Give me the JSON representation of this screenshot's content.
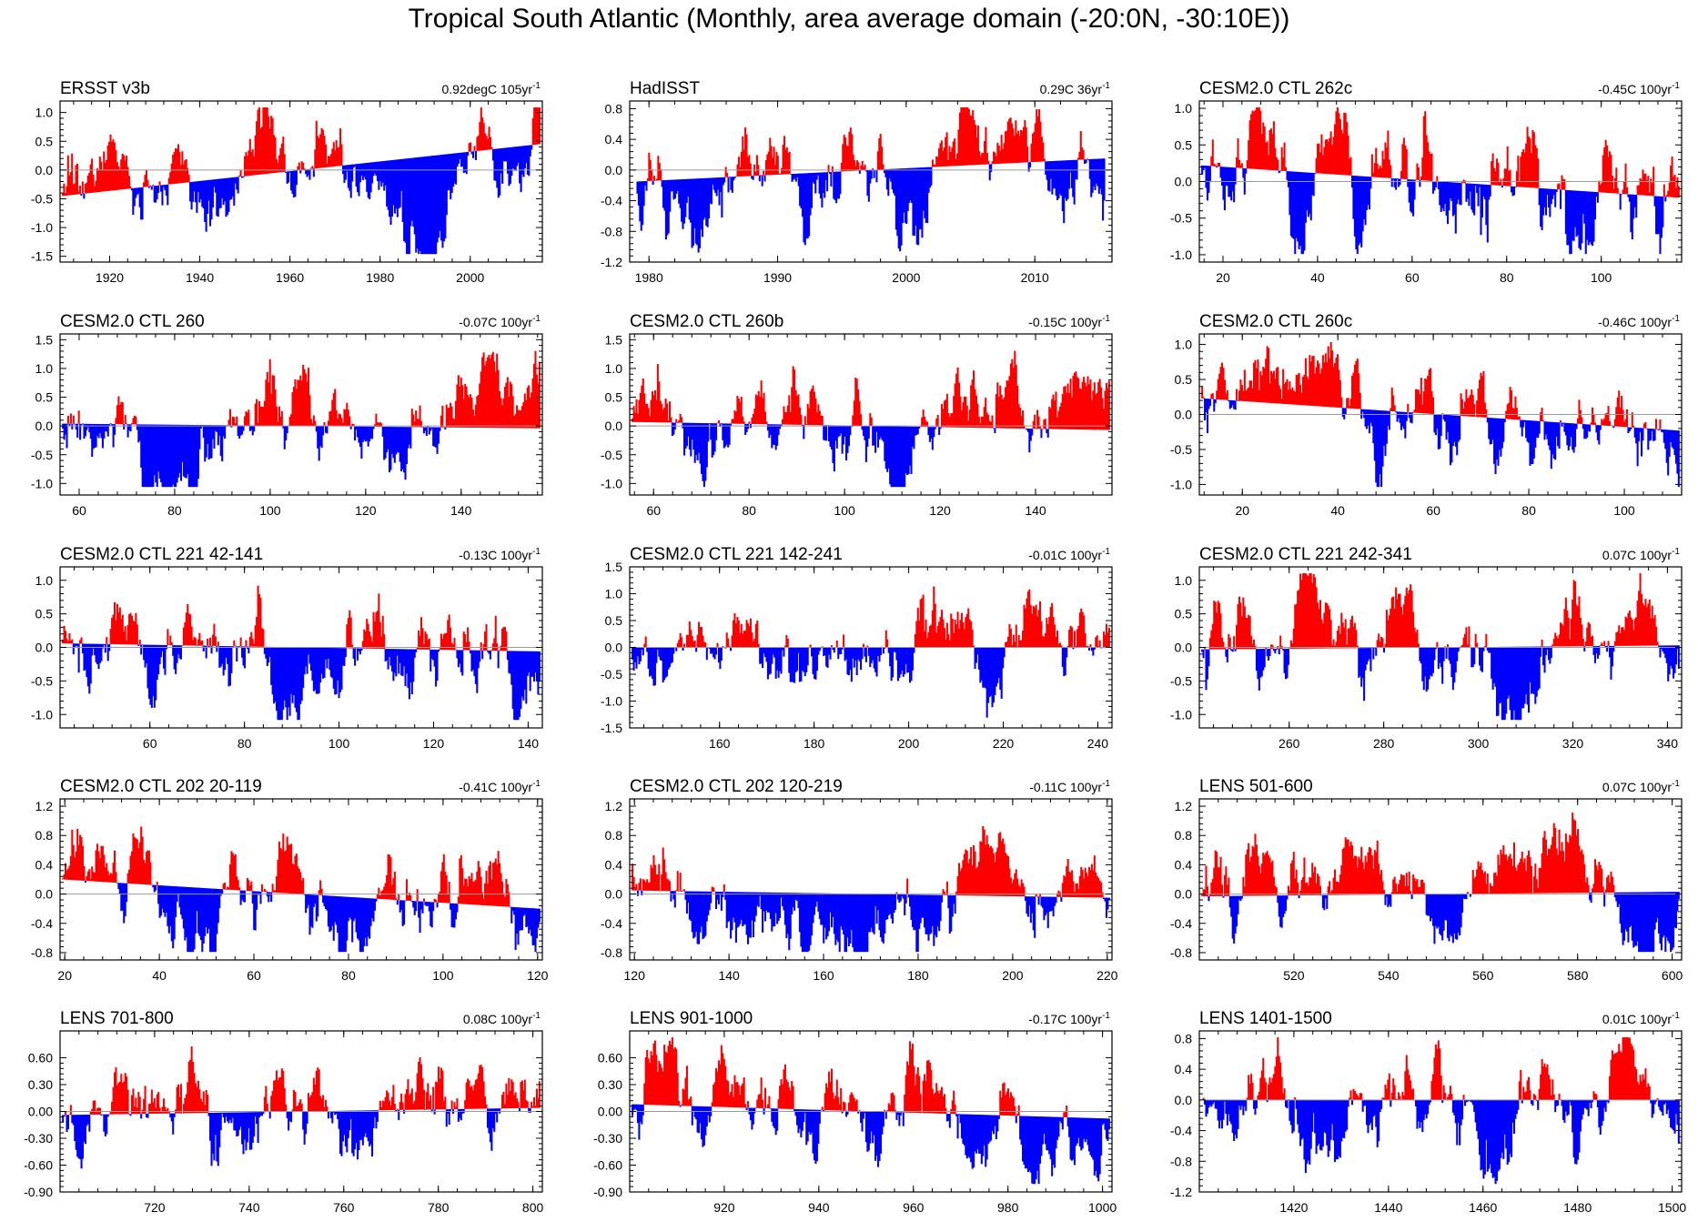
{
  "title": "Tropical South Atlantic (Monthly, area average domain (-20:0N, -30:10E))",
  "colors": {
    "positive": "#ff0000",
    "negative": "#0000ff",
    "axis": "#000000",
    "zero_line": "#9a9a9a"
  },
  "chart_data": [
    {
      "type": "bar",
      "title": "ERSST v3b",
      "trend": "0.92degC 105yr",
      "trend_unit_exp": "-1",
      "xlim": [
        1909,
        2016
      ],
      "ylim": [
        -1.6,
        1.2
      ],
      "yticks": [
        "1.0",
        "0.5",
        "0.0",
        "-0.5",
        "-1.0",
        "-1.5"
      ],
      "ytick_values": [
        1.0,
        0.5,
        0.0,
        -0.5,
        -1.0,
        -1.5
      ],
      "xticks": [
        "1920",
        "1940",
        "1960",
        "1980",
        "2000"
      ],
      "xtick_values": [
        1920,
        1940,
        1960,
        1980,
        2000
      ],
      "trend_line": [
        -0.45,
        0.45
      ],
      "amp": 0.55,
      "seed": 11
    },
    {
      "type": "bar",
      "title": "HadISST",
      "trend": "0.29C 36yr",
      "trend_unit_exp": "-1",
      "xlim": [
        1978.5,
        2016
      ],
      "ylim": [
        -1.2,
        0.9
      ],
      "yticks": [
        "0.8",
        "0.4",
        "0.0",
        "-0.4",
        "-0.8",
        "-1.2"
      ],
      "ytick_values": [
        0.8,
        0.4,
        0.0,
        -0.4,
        -0.8,
        -1.2
      ],
      "xticks": [
        "1980",
        "1990",
        "2000",
        "2010"
      ],
      "xtick_values": [
        1980,
        1990,
        2000,
        2010
      ],
      "trend_line": [
        -0.15,
        0.15
      ],
      "amp": 0.45,
      "seed": 23
    },
    {
      "type": "bar",
      "title": "CESM2.0 CTL 262c",
      "trend": "-0.45C 100yr",
      "trend_unit_exp": "-1",
      "xlim": [
        15,
        117
      ],
      "ylim": [
        -1.1,
        1.1
      ],
      "yticks": [
        "1.0",
        "0.5",
        "0.0",
        "-0.5",
        "-1.0"
      ],
      "ytick_values": [
        1.0,
        0.5,
        0.0,
        -0.5,
        -1.0
      ],
      "xticks": [
        "20",
        "40",
        "60",
        "80",
        "100"
      ],
      "xtick_values": [
        20,
        40,
        60,
        80,
        100
      ],
      "trend_line": [
        0.22,
        -0.22
      ],
      "amp": 0.55,
      "seed": 37
    },
    {
      "type": "bar",
      "title": "CESM2.0 CTL 260",
      "trend": "-0.07C 100yr",
      "trend_unit_exp": "-1",
      "xlim": [
        56,
        157
      ],
      "ylim": [
        -1.2,
        1.6
      ],
      "yticks": [
        "1.5",
        "1.0",
        "0.5",
        "0.0",
        "-0.5",
        "-1.0"
      ],
      "ytick_values": [
        1.5,
        1.0,
        0.5,
        0.0,
        -0.5,
        -1.0
      ],
      "xticks": [
        "60",
        "80",
        "100",
        "120",
        "140"
      ],
      "xtick_values": [
        60,
        80,
        100,
        120,
        140
      ],
      "trend_line": [
        0.04,
        -0.04
      ],
      "amp": 0.55,
      "seed": 41
    },
    {
      "type": "bar",
      "title": "CESM2.0 CTL 260b",
      "trend": "-0.15C 100yr",
      "trend_unit_exp": "-1",
      "xlim": [
        55,
        156
      ],
      "ylim": [
        -1.2,
        1.6
      ],
      "yticks": [
        "1.5",
        "1.0",
        "0.5",
        "0.0",
        "-0.5",
        "-1.0"
      ],
      "ytick_values": [
        1.5,
        1.0,
        0.5,
        0.0,
        -0.5,
        -1.0
      ],
      "xticks": [
        "60",
        "80",
        "100",
        "120",
        "140"
      ],
      "xtick_values": [
        60,
        80,
        100,
        120,
        140
      ],
      "trend_line": [
        0.07,
        -0.07
      ],
      "amp": 0.55,
      "seed": 53
    },
    {
      "type": "bar",
      "title": "CESM2.0 CTL 260c",
      "trend": "-0.46C 100yr",
      "trend_unit_exp": "-1",
      "xlim": [
        11,
        112
      ],
      "ylim": [
        -1.15,
        1.15
      ],
      "yticks": [
        "1.0",
        "0.5",
        "0.0",
        "-0.5",
        "-1.0"
      ],
      "ytick_values": [
        1.0,
        0.5,
        0.0,
        -0.5,
        -1.0
      ],
      "xticks": [
        "20",
        "40",
        "60",
        "80",
        "100"
      ],
      "xtick_values": [
        20,
        40,
        60,
        80,
        100
      ],
      "trend_line": [
        0.23,
        -0.23
      ],
      "amp": 0.5,
      "seed": 67
    },
    {
      "type": "bar",
      "title": "CESM2.0 CTL 221 42-141",
      "trend": "-0.13C 100yr",
      "trend_unit_exp": "-1",
      "xlim": [
        41,
        143
      ],
      "ylim": [
        -1.2,
        1.2
      ],
      "yticks": [
        "1.0",
        "0.5",
        "0.0",
        "-0.5",
        "-1.0"
      ],
      "ytick_values": [
        1.0,
        0.5,
        0.0,
        -0.5,
        -1.0
      ],
      "xticks": [
        "60",
        "80",
        "100",
        "120",
        "140"
      ],
      "xtick_values": [
        60,
        80,
        100,
        120,
        140
      ],
      "trend_line": [
        0.06,
        -0.06
      ],
      "amp": 0.5,
      "seed": 71
    },
    {
      "type": "bar",
      "title": "CESM2.0 CTL 221 142-241",
      "trend": "-0.01C 100yr",
      "trend_unit_exp": "-1",
      "xlim": [
        141,
        243
      ],
      "ylim": [
        -1.5,
        1.5
      ],
      "yticks": [
        "1.5",
        "1.0",
        "0.5",
        "0.0",
        "-0.5",
        "-1.0",
        "-1.5"
      ],
      "ytick_values": [
        1.5,
        1.0,
        0.5,
        0.0,
        -0.5,
        -1.0,
        -1.5
      ],
      "xticks": [
        "160",
        "180",
        "200",
        "220",
        "240"
      ],
      "xtick_values": [
        160,
        180,
        200,
        220,
        240
      ],
      "trend_line": [
        0.0,
        0.0
      ],
      "amp": 0.55,
      "seed": 83
    },
    {
      "type": "bar",
      "title": "CESM2.0 CTL 221 242-341",
      "trend": "0.07C 100yr",
      "trend_unit_exp": "-1",
      "xlim": [
        241,
        343
      ],
      "ylim": [
        -1.2,
        1.2
      ],
      "yticks": [
        "1.0",
        "0.5",
        "0.0",
        "-0.5",
        "-1.0"
      ],
      "ytick_values": [
        1.0,
        0.5,
        0.0,
        -0.5,
        -1.0
      ],
      "xticks": [
        "260",
        "280",
        "300",
        "320",
        "340"
      ],
      "xtick_values": [
        260,
        280,
        300,
        320,
        340
      ],
      "trend_line": [
        -0.03,
        0.03
      ],
      "amp": 0.5,
      "seed": 97
    },
    {
      "type": "bar",
      "title": "CESM2.0 CTL 202 20-119",
      "trend": "-0.41C 100yr",
      "trend_unit_exp": "-1",
      "xlim": [
        19,
        121
      ],
      "ylim": [
        -0.9,
        1.3
      ],
      "yticks": [
        "1.2",
        "0.8",
        "0.4",
        "0.0",
        "-0.4",
        "-0.8"
      ],
      "ytick_values": [
        1.2,
        0.8,
        0.4,
        0.0,
        -0.4,
        -0.8
      ],
      "xticks": [
        "20",
        "40",
        "60",
        "80",
        "100",
        "120"
      ],
      "xtick_values": [
        20,
        40,
        60,
        80,
        100,
        120
      ],
      "trend_line": [
        0.2,
        -0.2
      ],
      "amp": 0.42,
      "seed": 101
    },
    {
      "type": "bar",
      "title": "CESM2.0 CTL 202 120-219",
      "trend": "-0.11C 100yr",
      "trend_unit_exp": "-1",
      "xlim": [
        119,
        221
      ],
      "ylim": [
        -0.9,
        1.3
      ],
      "yticks": [
        "1.2",
        "0.8",
        "0.4",
        "0.0",
        "-0.4",
        "-0.8"
      ],
      "ytick_values": [
        1.2,
        0.8,
        0.4,
        0.0,
        -0.4,
        -0.8
      ],
      "xticks": [
        "120",
        "140",
        "160",
        "180",
        "200",
        "220"
      ],
      "xtick_values": [
        120,
        140,
        160,
        180,
        200,
        220
      ],
      "trend_line": [
        0.05,
        -0.05
      ],
      "amp": 0.42,
      "seed": 113
    },
    {
      "type": "bar",
      "title": "LENS 501-600",
      "trend": "0.07C 100yr",
      "trend_unit_exp": "-1",
      "xlim": [
        500,
        602
      ],
      "ylim": [
        -0.9,
        1.3
      ],
      "yticks": [
        "1.2",
        "0.8",
        "0.4",
        "0.0",
        "-0.4",
        "-0.8"
      ],
      "ytick_values": [
        1.2,
        0.8,
        0.4,
        0.0,
        -0.4,
        -0.8
      ],
      "xticks": [
        "520",
        "540",
        "560",
        "580",
        "600"
      ],
      "xtick_values": [
        520,
        540,
        560,
        580,
        600
      ],
      "trend_line": [
        -0.03,
        0.03
      ],
      "amp": 0.4,
      "seed": 127
    },
    {
      "type": "bar",
      "title": "LENS 701-800",
      "trend": "0.08C 100yr",
      "trend_unit_exp": "-1",
      "xlim": [
        700,
        802
      ],
      "ylim": [
        -0.9,
        0.9
      ],
      "yticks": [
        "0.60",
        "0.30",
        "0.00",
        "-0.30",
        "-0.60",
        "-0.90"
      ],
      "ytick_values": [
        0.6,
        0.3,
        0.0,
        -0.3,
        -0.6,
        -0.9
      ],
      "xticks": [
        "720",
        "740",
        "760",
        "780",
        "800"
      ],
      "xtick_values": [
        720,
        740,
        760,
        780,
        800
      ],
      "trend_line": [
        -0.04,
        0.04
      ],
      "amp": 0.35,
      "seed": 131
    },
    {
      "type": "bar",
      "title": "LENS 901-1000",
      "trend": "-0.17C 100yr",
      "trend_unit_exp": "-1",
      "xlim": [
        900,
        1002
      ],
      "ylim": [
        -0.9,
        0.9
      ],
      "yticks": [
        "0.60",
        "0.30",
        "0.00",
        "-0.30",
        "-0.60",
        "-0.90"
      ],
      "ytick_values": [
        0.6,
        0.3,
        0.0,
        -0.3,
        -0.6,
        -0.9
      ],
      "xticks": [
        "920",
        "940",
        "960",
        "980",
        "1000"
      ],
      "xtick_values": [
        920,
        940,
        960,
        980,
        1000
      ],
      "trend_line": [
        0.08,
        -0.08
      ],
      "amp": 0.35,
      "seed": 149
    },
    {
      "type": "bar",
      "title": "LENS 1401-1500",
      "trend": "0.01C 100yr",
      "trend_unit_exp": "-1",
      "xlim": [
        1400,
        1502
      ],
      "ylim": [
        -1.2,
        0.9
      ],
      "yticks": [
        "0.8",
        "0.4",
        "0.0",
        "-0.4",
        "-0.8",
        "-1.2"
      ],
      "ytick_values": [
        0.8,
        0.4,
        0.0,
        -0.4,
        -0.8,
        -1.2
      ],
      "xticks": [
        "1420",
        "1440",
        "1460",
        "1480",
        "1500"
      ],
      "xtick_values": [
        1420,
        1440,
        1460,
        1480,
        1500
      ],
      "trend_line": [
        0.0,
        0.0
      ],
      "amp": 0.4,
      "seed": 157
    }
  ]
}
